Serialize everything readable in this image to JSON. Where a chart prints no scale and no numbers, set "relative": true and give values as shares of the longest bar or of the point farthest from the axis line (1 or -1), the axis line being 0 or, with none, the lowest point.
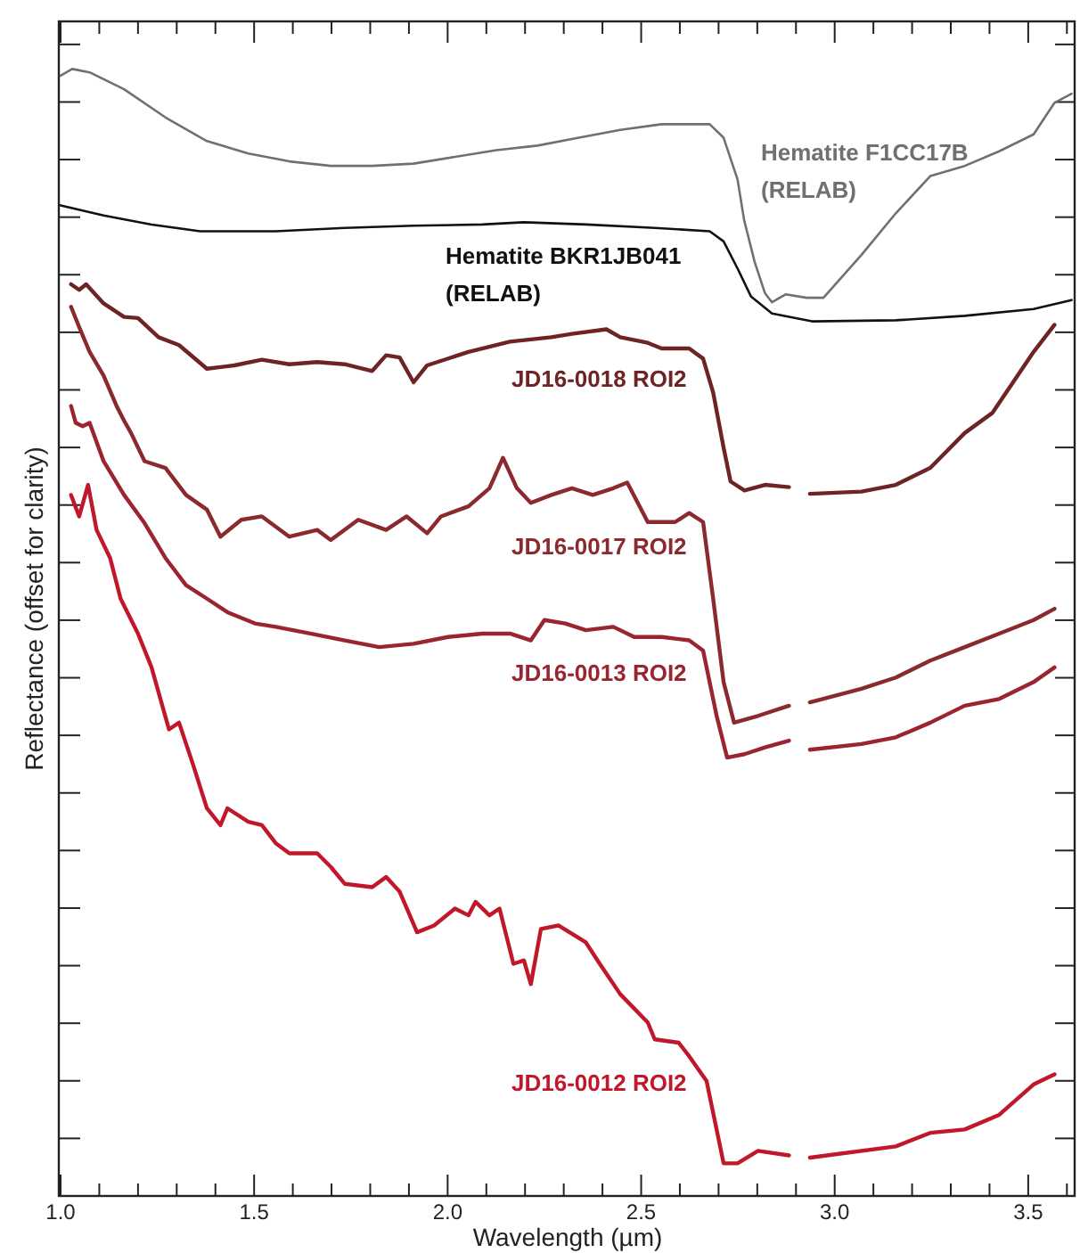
{
  "chart_data": {
    "type": "line",
    "relative": true,
    "xlabel": "Wavelength (µm)",
    "ylabel": "Reflectance (offset for clarity)",
    "xlim": [
      1.0,
      3.62
    ],
    "xticks": [
      {
        "value": 1.0,
        "label": "1.0"
      },
      {
        "value": 1.1,
        "label": null
      },
      {
        "value": 1.2,
        "label": null
      },
      {
        "value": 1.3,
        "label": null
      },
      {
        "value": 1.4,
        "label": null
      },
      {
        "value": 1.5,
        "label": "1.5"
      },
      {
        "value": 1.6,
        "label": null
      },
      {
        "value": 1.7,
        "label": null
      },
      {
        "value": 1.8,
        "label": null
      },
      {
        "value": 1.9,
        "label": null
      },
      {
        "value": 2.0,
        "label": "2.0"
      },
      {
        "value": 2.1,
        "label": null
      },
      {
        "value": 2.2,
        "label": null
      },
      {
        "value": 2.3,
        "label": null
      },
      {
        "value": 2.4,
        "label": null
      },
      {
        "value": 2.5,
        "label": "2.5"
      },
      {
        "value": 2.6,
        "label": null
      },
      {
        "value": 2.7,
        "label": null
      },
      {
        "value": 2.8,
        "label": null
      },
      {
        "value": 2.9,
        "label": null
      },
      {
        "value": 3.0,
        "label": "3.0"
      },
      {
        "value": 3.1,
        "label": null
      },
      {
        "value": 3.2,
        "label": null
      },
      {
        "value": 3.3,
        "label": null
      },
      {
        "value": 3.4,
        "label": null
      },
      {
        "value": 3.5,
        "label": "3.5"
      },
      {
        "value": 3.6,
        "label": null
      }
    ],
    "series": [
      {
        "name": "Hematite F1CC17B\n(RELAB)",
        "color": "#707070",
        "x": [
          1.0,
          1.03,
          1.075,
          1.164,
          1.271,
          1.378,
          1.485,
          1.591,
          1.698,
          1.805,
          1.912,
          2.019,
          2.126,
          2.232,
          2.339,
          2.446,
          2.553,
          2.677,
          2.713,
          2.749,
          2.766,
          2.793,
          2.82,
          2.838,
          2.873,
          2.927,
          2.971,
          3.069,
          3.158,
          3.247,
          3.336,
          3.425,
          3.514,
          3.568,
          3.612
        ],
        "values": [
          0.994,
          1.0,
          0.997,
          0.982,
          0.957,
          0.936,
          0.925,
          0.918,
          0.914,
          0.914,
          0.916,
          0.922,
          0.928,
          0.932,
          0.939,
          0.946,
          0.951,
          0.951,
          0.939,
          0.902,
          0.866,
          0.829,
          0.801,
          0.793,
          0.8,
          0.797,
          0.797,
          0.835,
          0.872,
          0.905,
          0.914,
          0.927,
          0.942,
          0.97,
          0.978
        ]
      },
      {
        "name": "Hematite BKR1JB041\n(RELAB)",
        "color": "#111111",
        "x": [
          1.0,
          1.111,
          1.235,
          1.36,
          1.556,
          1.734,
          1.912,
          2.09,
          2.197,
          2.357,
          2.535,
          2.677,
          2.713,
          2.749,
          2.784,
          2.838,
          2.944,
          3.158,
          3.336,
          3.514,
          3.612
        ],
        "values": [
          0.879,
          0.87,
          0.862,
          0.856,
          0.856,
          0.859,
          0.861,
          0.862,
          0.864,
          0.862,
          0.859,
          0.856,
          0.847,
          0.823,
          0.798,
          0.783,
          0.776,
          0.777,
          0.781,
          0.787,
          0.795
        ]
      },
      {
        "name": "JD16-0018 ROI2",
        "color": "#6e2424",
        "x": [
          1.027,
          1.048,
          1.066,
          1.111,
          1.164,
          1.2,
          1.253,
          1.306,
          1.378,
          1.449,
          1.52,
          1.591,
          1.663,
          1.734,
          1.805,
          1.841,
          1.876,
          1.912,
          1.947,
          2.054,
          2.161,
          2.268,
          2.321,
          2.41,
          2.446,
          2.517,
          2.553,
          2.624,
          2.66,
          2.686,
          2.713,
          2.731,
          2.767,
          2.82,
          2.882,
          2.91,
          2.936,
          3.069,
          3.158,
          3.247,
          3.336,
          3.408,
          3.514,
          3.568
        ],
        "values": [
          0.809,
          0.804,
          0.809,
          0.792,
          0.78,
          0.779,
          0.762,
          0.755,
          0.734,
          0.737,
          0.742,
          0.738,
          0.74,
          0.738,
          0.732,
          0.746,
          0.744,
          0.722,
          0.737,
          0.749,
          0.758,
          0.762,
          0.765,
          0.769,
          0.762,
          0.757,
          0.752,
          0.752,
          0.743,
          0.713,
          0.664,
          0.634,
          0.626,
          0.631,
          0.629,
          null,
          0.623,
          0.625,
          0.631,
          0.646,
          0.677,
          0.695,
          0.749,
          0.773
        ]
      },
      {
        "name": "JD16-0017 ROI2",
        "color": "#8a2a2e",
        "x": [
          1.027,
          1.048,
          1.075,
          1.111,
          1.146,
          1.164,
          1.182,
          1.217,
          1.271,
          1.324,
          1.378,
          1.413,
          1.467,
          1.52,
          1.591,
          1.663,
          1.698,
          1.769,
          1.841,
          1.894,
          1.947,
          1.983,
          2.054,
          2.108,
          2.143,
          2.179,
          2.215,
          2.268,
          2.321,
          2.375,
          2.428,
          2.464,
          2.517,
          2.588,
          2.624,
          2.66,
          2.686,
          2.713,
          2.74,
          2.802,
          2.882,
          2.91,
          2.936,
          3.069,
          3.158,
          3.247,
          3.336,
          3.425,
          3.514,
          3.568
        ],
        "values": [
          0.789,
          0.771,
          0.749,
          0.728,
          0.7,
          0.688,
          0.677,
          0.652,
          0.646,
          0.622,
          0.609,
          0.585,
          0.6,
          0.603,
          0.585,
          0.591,
          0.582,
          0.6,
          0.591,
          0.603,
          0.588,
          0.603,
          0.612,
          0.628,
          0.655,
          0.628,
          0.615,
          0.622,
          0.628,
          0.622,
          0.628,
          0.633,
          0.598,
          0.598,
          0.606,
          0.598,
          0.53,
          0.456,
          0.42,
          0.426,
          0.435,
          null,
          0.438,
          0.45,
          0.46,
          0.475,
          0.487,
          0.499,
          0.511,
          0.521
        ]
      },
      {
        "name": "JD16-0013 ROI2",
        "color": "#9a2530",
        "x": [
          1.027,
          1.039,
          1.057,
          1.075,
          1.111,
          1.164,
          1.217,
          1.271,
          1.324,
          1.378,
          1.431,
          1.502,
          1.556,
          1.645,
          1.734,
          1.823,
          1.912,
          2.001,
          2.09,
          2.161,
          2.215,
          2.25,
          2.304,
          2.357,
          2.428,
          2.482,
          2.553,
          2.624,
          2.66,
          2.695,
          2.722,
          2.767,
          2.82,
          2.882,
          2.91,
          2.936,
          3.069,
          3.158,
          3.247,
          3.336,
          3.425,
          3.514,
          3.568
        ],
        "values": [
          0.701,
          0.686,
          0.683,
          0.686,
          0.652,
          0.622,
          0.597,
          0.566,
          0.542,
          0.53,
          0.518,
          0.508,
          0.505,
          0.499,
          0.493,
          0.487,
          0.49,
          0.496,
          0.499,
          0.499,
          0.493,
          0.511,
          0.508,
          0.502,
          0.505,
          0.496,
          0.496,
          0.493,
          0.484,
          0.426,
          0.389,
          0.392,
          0.398,
          0.404,
          null,
          0.396,
          0.401,
          0.407,
          0.42,
          0.435,
          0.441,
          0.456,
          0.469
        ]
      },
      {
        "name": "JD16-0012 ROI2",
        "color": "#c0182a",
        "x": [
          1.027,
          1.048,
          1.071,
          1.093,
          1.128,
          1.155,
          1.2,
          1.235,
          1.28,
          1.306,
          1.342,
          1.378,
          1.413,
          1.431,
          1.485,
          1.52,
          1.556,
          1.591,
          1.663,
          1.698,
          1.734,
          1.805,
          1.841,
          1.876,
          1.921,
          1.965,
          2.019,
          2.054,
          2.072,
          2.108,
          2.134,
          2.17,
          2.197,
          2.215,
          2.241,
          2.286,
          2.357,
          2.393,
          2.446,
          2.517,
          2.535,
          2.597,
          2.624,
          2.669,
          2.713,
          2.749,
          2.802,
          2.882,
          2.91,
          2.936,
          3.158,
          3.247,
          3.336,
          3.425,
          3.514,
          3.568
        ],
        "values": [
          0.622,
          0.603,
          0.631,
          0.591,
          0.566,
          0.53,
          0.499,
          0.469,
          0.414,
          0.42,
          0.383,
          0.344,
          0.329,
          0.344,
          0.332,
          0.329,
          0.313,
          0.304,
          0.304,
          0.292,
          0.277,
          0.274,
          0.283,
          0.27,
          0.234,
          0.24,
          0.255,
          0.249,
          0.261,
          0.249,
          0.255,
          0.206,
          0.209,
          0.188,
          0.237,
          0.24,
          0.225,
          0.206,
          0.179,
          0.154,
          0.139,
          0.136,
          0.124,
          0.102,
          0.029,
          0.029,
          0.04,
          0.036,
          null,
          0.034,
          0.044,
          0.056,
          0.059,
          0.072,
          0.099,
          0.108
        ]
      }
    ]
  }
}
